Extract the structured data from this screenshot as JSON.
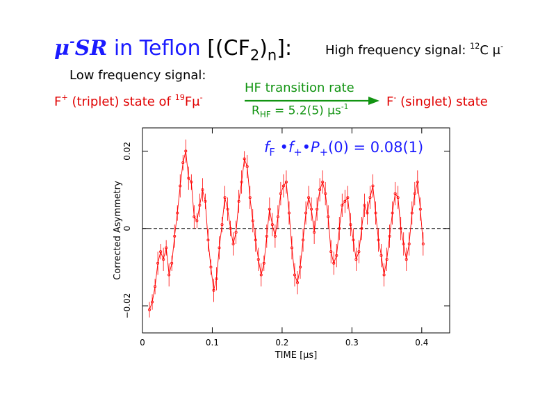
{
  "title": {
    "mu": "μ",
    "mu_sup": "-",
    "sr": "SR",
    "in_teflon": " in Teflon ",
    "formula_open": "[(",
    "formula_cf": "CF",
    "formula_sub2": "2",
    "formula_close": ")",
    "formula_subn": "n",
    "formula_end": "]:"
  },
  "high_freq": {
    "text": "High frequency signal: ",
    "sup": "12",
    "tail": "C μ",
    "tail_sup": "-"
  },
  "low_freq": "Low frequency signal:",
  "triplet": {
    "f": "F",
    "f_sup": "+",
    "text": " (triplet) state of ",
    "iso_sup": "19",
    "tail": "Fμ",
    "tail_sup": "-"
  },
  "transition": {
    "label": "HF transition rate",
    "rate_r": "R",
    "rate_sub": "HF",
    "rate_value": " = 5.2(5) μs",
    "rate_sup": "-1"
  },
  "singlet": {
    "f": "F",
    "f_sup": "-",
    "text": " (singlet) state"
  },
  "fraction": {
    "f": "f",
    "f_sub": "F",
    "dot1": " •",
    "fplus": "f",
    "fplus_sub": "+",
    "dot2": "•",
    "p": "P",
    "p_sub": "+",
    "tail": "(0) = 0.08(1)"
  },
  "colors": {
    "title": "#1a1aff",
    "accent_red": "#e00000",
    "accent_green": "#129412",
    "data": "#ff0000"
  },
  "chart_data": {
    "type": "scatter",
    "xlabel": "TIME [μs]",
    "ylabel": "Corrected Asymmetry",
    "xlim": [
      0,
      0.44
    ],
    "ylim": [
      -0.027,
      0.026
    ],
    "xticks": [
      0,
      0.1,
      0.2,
      0.3,
      0.4
    ],
    "xtick_labels": [
      "0",
      "0.1",
      "0.2",
      "0.3",
      "0.4"
    ],
    "yticks": [
      -0.02,
      0,
      0.02
    ],
    "ytick_labels": [
      "−0.02",
      "0",
      "0.02"
    ],
    "zero_line": true,
    "grid": false,
    "fit_curve": true,
    "series": [
      {
        "x": [
          0.01,
          0.014,
          0.018,
          0.022,
          0.026,
          0.03,
          0.034,
          0.038,
          0.042,
          0.046,
          0.05,
          0.054,
          0.058,
          0.062,
          0.066,
          0.07,
          0.074,
          0.078,
          0.082,
          0.086,
          0.09,
          0.094,
          0.098,
          0.102,
          0.106,
          0.11,
          0.114,
          0.118,
          0.122,
          0.126,
          0.13,
          0.134,
          0.138,
          0.142,
          0.146,
          0.15,
          0.154,
          0.158,
          0.162,
          0.166,
          0.17,
          0.174,
          0.178,
          0.182,
          0.186,
          0.19,
          0.194,
          0.198,
          0.202,
          0.206,
          0.21,
          0.214,
          0.218,
          0.222,
          0.226,
          0.23,
          0.234,
          0.238,
          0.242,
          0.246,
          0.25,
          0.254,
          0.258,
          0.262,
          0.266,
          0.27,
          0.274,
          0.278,
          0.282,
          0.286,
          0.29,
          0.294,
          0.298,
          0.302,
          0.306,
          0.31,
          0.314,
          0.318,
          0.322,
          0.326,
          0.33,
          0.334,
          0.338,
          0.342,
          0.346,
          0.35,
          0.354,
          0.358,
          0.362,
          0.366,
          0.37,
          0.374,
          0.378,
          0.382,
          0.386,
          0.39,
          0.394,
          0.398,
          0.402
        ],
        "y": [
          -0.021,
          -0.019,
          -0.015,
          -0.009,
          -0.006,
          -0.008,
          -0.005,
          -0.012,
          -0.009,
          -0.002,
          0.004,
          0.011,
          0.017,
          0.02,
          0.013,
          0.012,
          0.003,
          0.002,
          0.006,
          0.01,
          0.007,
          -0.003,
          -0.01,
          -0.016,
          -0.013,
          -0.005,
          0.001,
          0.008,
          0.005,
          0.0,
          -0.004,
          -0.001,
          0.007,
          0.012,
          0.018,
          0.016,
          0.008,
          0.002,
          -0.003,
          -0.008,
          -0.012,
          -0.009,
          -0.002,
          0.005,
          0.001,
          -0.002,
          0.003,
          0.009,
          0.011,
          0.012,
          0.004,
          -0.005,
          -0.012,
          -0.014,
          -0.01,
          -0.003,
          0.004,
          0.008,
          0.005,
          -0.001,
          0.005,
          0.01,
          0.012,
          0.009,
          0.003,
          -0.006,
          -0.009,
          -0.007,
          0.0,
          0.006,
          0.007,
          0.008,
          0.001,
          -0.003,
          -0.008,
          -0.006,
          0.0,
          0.006,
          0.004,
          0.008,
          0.011,
          0.004,
          -0.003,
          -0.007,
          -0.012,
          -0.008,
          -0.002,
          0.004,
          0.009,
          0.008,
          0.0,
          -0.004,
          -0.008,
          -0.004,
          0.004,
          0.009,
          0.012,
          0.005,
          -0.004
        ],
        "err": [
          0.002,
          0.002,
          0.002,
          0.003,
          0.002,
          0.003,
          0.002,
          0.003,
          0.002,
          0.003,
          0.002,
          0.003,
          0.002,
          0.003,
          0.003,
          0.002,
          0.003,
          0.002,
          0.003,
          0.003,
          0.002,
          0.003,
          0.002,
          0.003,
          0.003,
          0.003,
          0.002,
          0.003,
          0.003,
          0.002,
          0.003,
          0.003,
          0.003,
          0.003,
          0.002,
          0.003,
          0.003,
          0.003,
          0.003,
          0.003,
          0.003,
          0.002,
          0.003,
          0.003,
          0.003,
          0.003,
          0.003,
          0.003,
          0.003,
          0.003,
          0.003,
          0.003,
          0.003,
          0.003,
          0.003,
          0.003,
          0.003,
          0.003,
          0.003,
          0.003,
          0.003,
          0.003,
          0.003,
          0.003,
          0.003,
          0.003,
          0.003,
          0.003,
          0.003,
          0.003,
          0.003,
          0.003,
          0.003,
          0.003,
          0.003,
          0.003,
          0.003,
          0.003,
          0.003,
          0.003,
          0.003,
          0.003,
          0.003,
          0.003,
          0.003,
          0.003,
          0.003,
          0.003,
          0.003,
          0.003,
          0.003,
          0.003,
          0.003,
          0.003,
          0.003,
          0.003,
          0.003,
          0.003,
          0.003
        ]
      }
    ]
  }
}
